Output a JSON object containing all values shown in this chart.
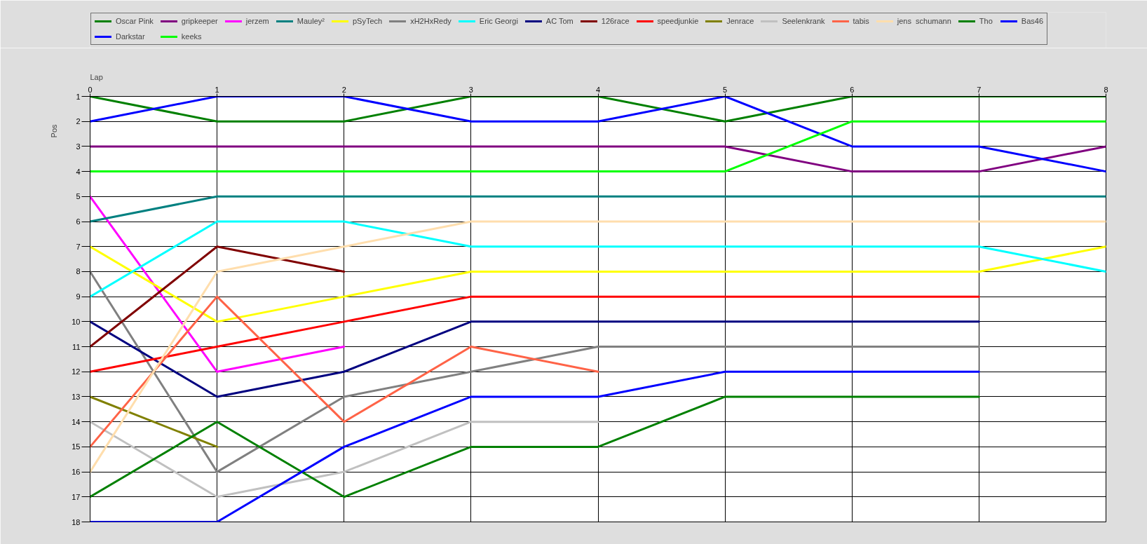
{
  "chart_data": {
    "type": "line",
    "xlabel": "Lap",
    "ylabel": "Pos",
    "x": [
      0,
      1,
      2,
      3,
      4,
      5,
      6,
      7,
      8
    ],
    "xlim": [
      0,
      8
    ],
    "xticks": [
      0,
      1,
      2,
      3,
      4,
      5,
      6,
      7,
      8
    ],
    "ylim": [
      18,
      1
    ],
    "yticks": [
      1,
      2,
      3,
      4,
      5,
      6,
      7,
      8,
      9,
      10,
      11,
      12,
      13,
      14,
      15,
      16,
      17,
      18
    ],
    "grid": true,
    "legend": "top",
    "series": [
      {
        "name": "Oscar Pink",
        "color": "#008000",
        "values": [
          1,
          2,
          2,
          1,
          1,
          2,
          1,
          1,
          1
        ]
      },
      {
        "name": "gripkeeper",
        "color": "#800080",
        "values": [
          3,
          3,
          3,
          3,
          3,
          3,
          4,
          4,
          3
        ]
      },
      {
        "name": "jerzem",
        "color": "#ff00ff",
        "values": [
          5,
          12,
          11,
          null,
          null,
          null,
          null,
          null,
          null
        ]
      },
      {
        "name": "Mauley²",
        "color": "#008080",
        "values": [
          6,
          5,
          5,
          5,
          5,
          5,
          5,
          5,
          5
        ]
      },
      {
        "name": "pSyTech",
        "color": "#ffff00",
        "values": [
          7,
          10,
          9,
          8,
          8,
          8,
          8,
          8,
          7
        ]
      },
      {
        "name": "xH2HxRedy",
        "color": "#808080",
        "values": [
          8,
          16,
          13,
          12,
          11,
          11,
          11,
          11,
          null
        ]
      },
      {
        "name": "Eric Georgi",
        "color": "#00ffff",
        "values": [
          9,
          6,
          6,
          7,
          7,
          7,
          7,
          7,
          8
        ]
      },
      {
        "name": "AC Tom",
        "color": "#000080",
        "values": [
          10,
          13,
          12,
          10,
          10,
          10,
          10,
          10,
          null
        ]
      },
      {
        "name": "126race",
        "color": "#800000",
        "values": [
          11,
          7,
          8,
          null,
          null,
          null,
          null,
          null,
          null
        ]
      },
      {
        "name": "speedjunkie",
        "color": "#ff0000",
        "values": [
          12,
          11,
          10,
          9,
          9,
          9,
          9,
          9,
          null
        ]
      },
      {
        "name": "Jenrace",
        "color": "#808000",
        "values": [
          13,
          15,
          null,
          null,
          null,
          null,
          null,
          null,
          null
        ]
      },
      {
        "name": "Seelenkrank",
        "color": "#c0c0c0",
        "values": [
          14,
          17,
          16,
          14,
          14,
          null,
          null,
          null,
          null
        ]
      },
      {
        "name": "tabis",
        "color": "#ff6347",
        "values": [
          15,
          9,
          14,
          11,
          12,
          null,
          null,
          null,
          null
        ]
      },
      {
        "name": "jens  schumann",
        "color": "#ffdead",
        "values": [
          16,
          8,
          7,
          6,
          6,
          6,
          6,
          6,
          6
        ]
      },
      {
        "name": "Tho",
        "color": "#008000",
        "values": [
          17,
          14,
          17,
          15,
          15,
          13,
          13,
          13,
          null
        ]
      },
      {
        "name": "Bas46",
        "color": "#0000ff",
        "values": [
          18,
          18,
          15,
          13,
          13,
          12,
          12,
          12,
          null
        ]
      },
      {
        "name": "Darkstar",
        "color": "#0000ff",
        "values": [
          2,
          1,
          1,
          2,
          2,
          1,
          3,
          3,
          4
        ]
      },
      {
        "name": "keeks",
        "color": "#00ff00",
        "values": [
          4,
          4,
          4,
          4,
          4,
          4,
          2,
          2,
          2
        ]
      }
    ]
  }
}
